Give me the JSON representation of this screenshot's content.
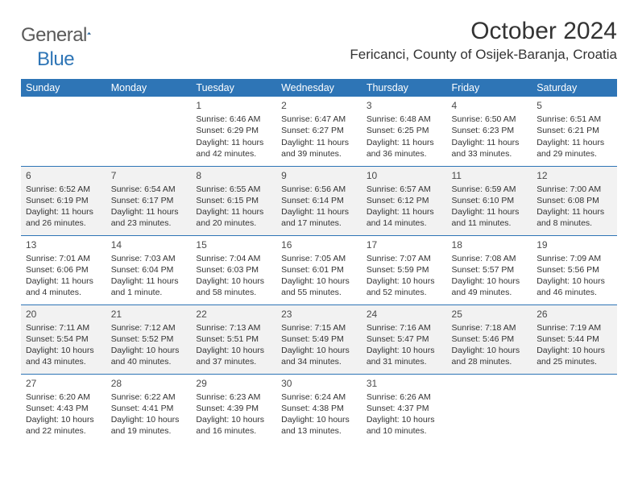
{
  "brand": {
    "word1": "General",
    "word2": "Blue"
  },
  "title": "October 2024",
  "location": "Fericanci, County of Osijek-Baranja, Croatia",
  "dayHeaders": [
    "Sunday",
    "Monday",
    "Tuesday",
    "Wednesday",
    "Thursday",
    "Friday",
    "Saturday"
  ],
  "colors": {
    "accent": "#2e75b6",
    "shade": "#f2f2f2",
    "text": "#333333"
  },
  "weeks": [
    {
      "shaded": false,
      "cells": [
        {
          "day": "",
          "lines": []
        },
        {
          "day": "",
          "lines": []
        },
        {
          "day": "1",
          "lines": [
            "Sunrise: 6:46 AM",
            "Sunset: 6:29 PM",
            "Daylight: 11 hours",
            "and 42 minutes."
          ]
        },
        {
          "day": "2",
          "lines": [
            "Sunrise: 6:47 AM",
            "Sunset: 6:27 PM",
            "Daylight: 11 hours",
            "and 39 minutes."
          ]
        },
        {
          "day": "3",
          "lines": [
            "Sunrise: 6:48 AM",
            "Sunset: 6:25 PM",
            "Daylight: 11 hours",
            "and 36 minutes."
          ]
        },
        {
          "day": "4",
          "lines": [
            "Sunrise: 6:50 AM",
            "Sunset: 6:23 PM",
            "Daylight: 11 hours",
            "and 33 minutes."
          ]
        },
        {
          "day": "5",
          "lines": [
            "Sunrise: 6:51 AM",
            "Sunset: 6:21 PM",
            "Daylight: 11 hours",
            "and 29 minutes."
          ]
        }
      ]
    },
    {
      "shaded": true,
      "cells": [
        {
          "day": "6",
          "lines": [
            "Sunrise: 6:52 AM",
            "Sunset: 6:19 PM",
            "Daylight: 11 hours",
            "and 26 minutes."
          ]
        },
        {
          "day": "7",
          "lines": [
            "Sunrise: 6:54 AM",
            "Sunset: 6:17 PM",
            "Daylight: 11 hours",
            "and 23 minutes."
          ]
        },
        {
          "day": "8",
          "lines": [
            "Sunrise: 6:55 AM",
            "Sunset: 6:15 PM",
            "Daylight: 11 hours",
            "and 20 minutes."
          ]
        },
        {
          "day": "9",
          "lines": [
            "Sunrise: 6:56 AM",
            "Sunset: 6:14 PM",
            "Daylight: 11 hours",
            "and 17 minutes."
          ]
        },
        {
          "day": "10",
          "lines": [
            "Sunrise: 6:57 AM",
            "Sunset: 6:12 PM",
            "Daylight: 11 hours",
            "and 14 minutes."
          ]
        },
        {
          "day": "11",
          "lines": [
            "Sunrise: 6:59 AM",
            "Sunset: 6:10 PM",
            "Daylight: 11 hours",
            "and 11 minutes."
          ]
        },
        {
          "day": "12",
          "lines": [
            "Sunrise: 7:00 AM",
            "Sunset: 6:08 PM",
            "Daylight: 11 hours",
            "and 8 minutes."
          ]
        }
      ]
    },
    {
      "shaded": false,
      "cells": [
        {
          "day": "13",
          "lines": [
            "Sunrise: 7:01 AM",
            "Sunset: 6:06 PM",
            "Daylight: 11 hours",
            "and 4 minutes."
          ]
        },
        {
          "day": "14",
          "lines": [
            "Sunrise: 7:03 AM",
            "Sunset: 6:04 PM",
            "Daylight: 11 hours",
            "and 1 minute."
          ]
        },
        {
          "day": "15",
          "lines": [
            "Sunrise: 7:04 AM",
            "Sunset: 6:03 PM",
            "Daylight: 10 hours",
            "and 58 minutes."
          ]
        },
        {
          "day": "16",
          "lines": [
            "Sunrise: 7:05 AM",
            "Sunset: 6:01 PM",
            "Daylight: 10 hours",
            "and 55 minutes."
          ]
        },
        {
          "day": "17",
          "lines": [
            "Sunrise: 7:07 AM",
            "Sunset: 5:59 PM",
            "Daylight: 10 hours",
            "and 52 minutes."
          ]
        },
        {
          "day": "18",
          "lines": [
            "Sunrise: 7:08 AM",
            "Sunset: 5:57 PM",
            "Daylight: 10 hours",
            "and 49 minutes."
          ]
        },
        {
          "day": "19",
          "lines": [
            "Sunrise: 7:09 AM",
            "Sunset: 5:56 PM",
            "Daylight: 10 hours",
            "and 46 minutes."
          ]
        }
      ]
    },
    {
      "shaded": true,
      "cells": [
        {
          "day": "20",
          "lines": [
            "Sunrise: 7:11 AM",
            "Sunset: 5:54 PM",
            "Daylight: 10 hours",
            "and 43 minutes."
          ]
        },
        {
          "day": "21",
          "lines": [
            "Sunrise: 7:12 AM",
            "Sunset: 5:52 PM",
            "Daylight: 10 hours",
            "and 40 minutes."
          ]
        },
        {
          "day": "22",
          "lines": [
            "Sunrise: 7:13 AM",
            "Sunset: 5:51 PM",
            "Daylight: 10 hours",
            "and 37 minutes."
          ]
        },
        {
          "day": "23",
          "lines": [
            "Sunrise: 7:15 AM",
            "Sunset: 5:49 PM",
            "Daylight: 10 hours",
            "and 34 minutes."
          ]
        },
        {
          "day": "24",
          "lines": [
            "Sunrise: 7:16 AM",
            "Sunset: 5:47 PM",
            "Daylight: 10 hours",
            "and 31 minutes."
          ]
        },
        {
          "day": "25",
          "lines": [
            "Sunrise: 7:18 AM",
            "Sunset: 5:46 PM",
            "Daylight: 10 hours",
            "and 28 minutes."
          ]
        },
        {
          "day": "26",
          "lines": [
            "Sunrise: 7:19 AM",
            "Sunset: 5:44 PM",
            "Daylight: 10 hours",
            "and 25 minutes."
          ]
        }
      ]
    },
    {
      "shaded": false,
      "last": true,
      "cells": [
        {
          "day": "27",
          "lines": [
            "Sunrise: 6:20 AM",
            "Sunset: 4:43 PM",
            "Daylight: 10 hours",
            "and 22 minutes."
          ]
        },
        {
          "day": "28",
          "lines": [
            "Sunrise: 6:22 AM",
            "Sunset: 4:41 PM",
            "Daylight: 10 hours",
            "and 19 minutes."
          ]
        },
        {
          "day": "29",
          "lines": [
            "Sunrise: 6:23 AM",
            "Sunset: 4:39 PM",
            "Daylight: 10 hours",
            "and 16 minutes."
          ]
        },
        {
          "day": "30",
          "lines": [
            "Sunrise: 6:24 AM",
            "Sunset: 4:38 PM",
            "Daylight: 10 hours",
            "and 13 minutes."
          ]
        },
        {
          "day": "31",
          "lines": [
            "Sunrise: 6:26 AM",
            "Sunset: 4:37 PM",
            "Daylight: 10 hours",
            "and 10 minutes."
          ]
        },
        {
          "day": "",
          "lines": []
        },
        {
          "day": "",
          "lines": []
        }
      ]
    }
  ]
}
